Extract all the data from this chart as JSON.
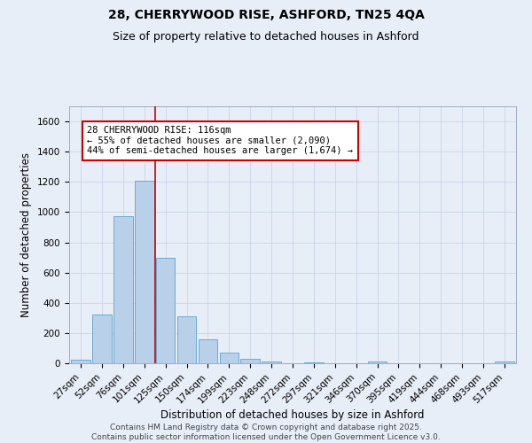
{
  "title_line1": "28, CHERRYWOOD RISE, ASHFORD, TN25 4QA",
  "title_line2": "Size of property relative to detached houses in Ashford",
  "xlabel": "Distribution of detached houses by size in Ashford",
  "ylabel": "Number of detached properties",
  "categories": [
    "27sqm",
    "52sqm",
    "76sqm",
    "101sqm",
    "125sqm",
    "150sqm",
    "174sqm",
    "199sqm",
    "223sqm",
    "248sqm",
    "272sqm",
    "297sqm",
    "321sqm",
    "346sqm",
    "370sqm",
    "395sqm",
    "419sqm",
    "444sqm",
    "468sqm",
    "493sqm",
    "517sqm"
  ],
  "values": [
    25,
    325,
    975,
    1210,
    700,
    310,
    160,
    70,
    30,
    12,
    0,
    8,
    0,
    0,
    10,
    0,
    0,
    0,
    0,
    0,
    10
  ],
  "bar_color": "#b8d0e8",
  "bar_edge_color": "#6aaad4",
  "bar_width": 0.9,
  "red_line_color": "#cc0000",
  "annotation_text": "28 CHERRYWOOD RISE: 116sqm\n← 55% of detached houses are smaller (2,090)\n44% of semi-detached houses are larger (1,674) →",
  "annotation_box_color": "#ffffff",
  "annotation_box_edge": "#cc0000",
  "ylim": [
    0,
    1700
  ],
  "yticks": [
    0,
    200,
    400,
    600,
    800,
    1000,
    1200,
    1400,
    1600
  ],
  "grid_color": "#c8d4e8",
  "background_color": "#e8eef8",
  "plot_bg_color": "#e8eef8",
  "footer_line1": "Contains HM Land Registry data © Crown copyright and database right 2025.",
  "footer_line2": "Contains public sector information licensed under the Open Government Licence v3.0.",
  "title_fontsize": 10,
  "subtitle_fontsize": 9,
  "axis_label_fontsize": 8.5,
  "tick_fontsize": 7.5,
  "annotation_fontsize": 7.5,
  "footer_fontsize": 6.5
}
